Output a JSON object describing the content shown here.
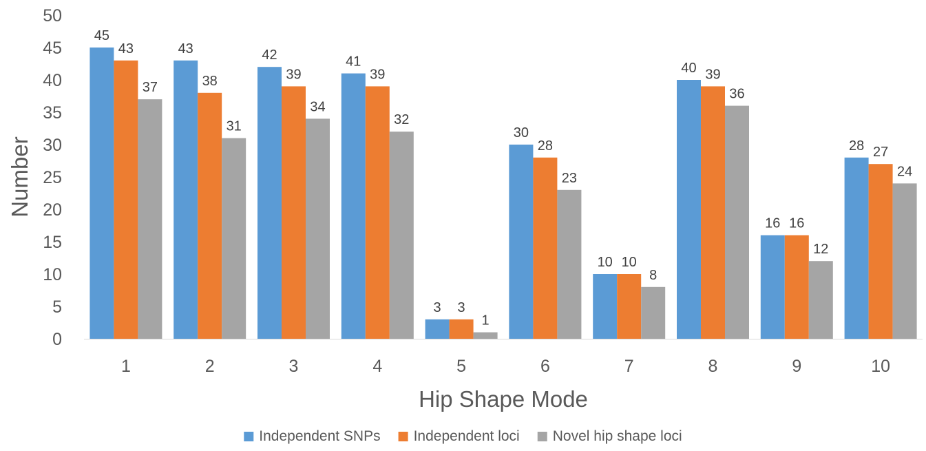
{
  "chart_data": {
    "type": "bar",
    "title": "",
    "xlabel": "Hip Shape Mode",
    "ylabel": "Number",
    "ylim": [
      0,
      50
    ],
    "yticks": [
      0,
      5,
      10,
      15,
      20,
      25,
      30,
      35,
      40,
      45,
      50
    ],
    "grid": false,
    "legend_position": "bottom",
    "categories": [
      "1",
      "2",
      "3",
      "4",
      "5",
      "6",
      "7",
      "8",
      "9",
      "10"
    ],
    "series": [
      {
        "name": "Independent SNPs",
        "color": "#5b9bd5",
        "values": [
          45,
          43,
          42,
          41,
          3,
          30,
          10,
          40,
          16,
          28
        ]
      },
      {
        "name": "Independent loci",
        "color": "#ed7d31",
        "values": [
          43,
          38,
          39,
          39,
          3,
          28,
          10,
          39,
          16,
          27
        ]
      },
      {
        "name": "Novel hip shape loci",
        "color": "#a5a5a5",
        "values": [
          37,
          31,
          34,
          32,
          1,
          23,
          8,
          36,
          12,
          24
        ]
      }
    ]
  }
}
